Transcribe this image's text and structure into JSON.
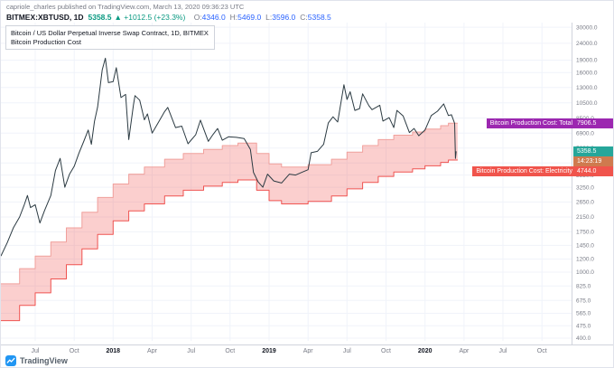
{
  "header": {
    "published_line": "capriole_charles published on TradingView.com, March 13, 2020 09:36:23 UTC",
    "symbol": "BITMEX:XBTUSD, 1D",
    "last_price": "5358.5",
    "change": "▲ +1012.5 (+23.3%)",
    "ohlc": [
      {
        "label": "O:",
        "value": "4346.0"
      },
      {
        "label": "H:",
        "value": "5469.0"
      },
      {
        "label": "L:",
        "value": "3596.0"
      },
      {
        "label": "C:",
        "value": "5358.5"
      }
    ]
  },
  "legend": {
    "line1": "Bitcoin / US Dollar Perpetual Inverse Swap Contract, 1D, BITMEX",
    "line2": "Bitcoin Production Cost"
  },
  "price_labels": {
    "total": {
      "text": "Bitcoin Production Cost: Total",
      "value": "7906.5",
      "color": "#9c27b0",
      "y_value": 7906.5
    },
    "last": {
      "value": "5358.5",
      "color": "#26a69a",
      "y_value": 5358.5
    },
    "countdown": {
      "value": "14:23:19",
      "color": "#cf7a4e"
    },
    "electricity": {
      "text": "Bitcoin Production Cost: Electricity",
      "value": "4744.0",
      "color": "#f0544c",
      "y_value": 4744.0
    }
  },
  "footer": {
    "brand": "TradingView"
  },
  "chart_data": {
    "type": "line",
    "title": "Bitcoin / US Dollar Perpetual Inverse Swap Contract, 1D, BITMEX",
    "subtitle": "Bitcoin Production Cost",
    "y_scale": "log",
    "grid": true,
    "x_range": [
      2017.28,
      2020.94
    ],
    "y_range": [
      385,
      32000
    ],
    "band_fill": "rgba(239,83,80,0.28)",
    "y_ticks": [
      30000,
      24000,
      19000,
      16000,
      13000,
      10500,
      8500,
      6900,
      5600,
      4550,
      3850,
      3250,
      2650,
      2150,
      1750,
      1450,
      1200,
      1000,
      825,
      675,
      565,
      475,
      400
    ],
    "x_ticks": [
      {
        "x": 2017.5,
        "label": "Jul"
      },
      {
        "x": 2017.75,
        "label": "Oct"
      },
      {
        "x": 2018.0,
        "label": "2018",
        "year": true
      },
      {
        "x": 2018.25,
        "label": "Apr"
      },
      {
        "x": 2018.5,
        "label": "Jul"
      },
      {
        "x": 2018.75,
        "label": "Oct"
      },
      {
        "x": 2019.0,
        "label": "2019",
        "year": true
      },
      {
        "x": 2019.25,
        "label": "Apr"
      },
      {
        "x": 2019.5,
        "label": "Jul"
      },
      {
        "x": 2019.75,
        "label": "Oct"
      },
      {
        "x": 2020.0,
        "label": "2020",
        "year": true
      },
      {
        "x": 2020.25,
        "label": "Apr"
      },
      {
        "x": 2020.5,
        "label": "Jul"
      },
      {
        "x": 2020.75,
        "label": "Oct"
      }
    ],
    "series": [
      {
        "name": "BITMEX:XBTUSD close",
        "color": "#2b3a42",
        "points": [
          [
            2017.28,
            1250
          ],
          [
            2017.32,
            1500
          ],
          [
            2017.36,
            1850
          ],
          [
            2017.4,
            2150
          ],
          [
            2017.43,
            2550
          ],
          [
            2017.45,
            2900
          ],
          [
            2017.47,
            2450
          ],
          [
            2017.5,
            2550
          ],
          [
            2017.53,
            1980
          ],
          [
            2017.56,
            2350
          ],
          [
            2017.6,
            2900
          ],
          [
            2017.63,
            4100
          ],
          [
            2017.66,
            4850
          ],
          [
            2017.69,
            3250
          ],
          [
            2017.72,
            3900
          ],
          [
            2017.75,
            4350
          ],
          [
            2017.78,
            5200
          ],
          [
            2017.81,
            6100
          ],
          [
            2017.84,
            7200
          ],
          [
            2017.86,
            5900
          ],
          [
            2017.88,
            8100
          ],
          [
            2017.9,
            9900
          ],
          [
            2017.93,
            16600
          ],
          [
            2017.95,
            19500
          ],
          [
            2017.97,
            13900
          ],
          [
            2018.0,
            14100
          ],
          [
            2018.02,
            17100
          ],
          [
            2018.05,
            11300
          ],
          [
            2018.08,
            11800
          ],
          [
            2018.1,
            6300
          ],
          [
            2018.13,
            10200
          ],
          [
            2018.14,
            11600
          ],
          [
            2018.17,
            10900
          ],
          [
            2018.2,
            8300
          ],
          [
            2018.22,
            9000
          ],
          [
            2018.25,
            6900
          ],
          [
            2018.29,
            8000
          ],
          [
            2018.33,
            9300
          ],
          [
            2018.35,
            9850
          ],
          [
            2018.4,
            7450
          ],
          [
            2018.44,
            7600
          ],
          [
            2018.48,
            5950
          ],
          [
            2018.53,
            6750
          ],
          [
            2018.56,
            8250
          ],
          [
            2018.61,
            6150
          ],
          [
            2018.64,
            6750
          ],
          [
            2018.67,
            7350
          ],
          [
            2018.7,
            6250
          ],
          [
            2018.74,
            6550
          ],
          [
            2018.79,
            6500
          ],
          [
            2018.84,
            6400
          ],
          [
            2018.88,
            5500
          ],
          [
            2018.9,
            4000
          ],
          [
            2018.93,
            3500
          ],
          [
            2018.96,
            3250
          ],
          [
            2018.99,
            3900
          ],
          [
            2019.03,
            3550
          ],
          [
            2019.08,
            3450
          ],
          [
            2019.13,
            3900
          ],
          [
            2019.17,
            3850
          ],
          [
            2019.21,
            4000
          ],
          [
            2019.25,
            4150
          ],
          [
            2019.27,
            5250
          ],
          [
            2019.31,
            5350
          ],
          [
            2019.35,
            5900
          ],
          [
            2019.38,
            7950
          ],
          [
            2019.41,
            8650
          ],
          [
            2019.44,
            8050
          ],
          [
            2019.48,
            13500
          ],
          [
            2019.5,
            11000
          ],
          [
            2019.52,
            12250
          ],
          [
            2019.55,
            9450
          ],
          [
            2019.58,
            9700
          ],
          [
            2019.6,
            11900
          ],
          [
            2019.64,
            10100
          ],
          [
            2019.66,
            9550
          ],
          [
            2019.71,
            10150
          ],
          [
            2019.73,
            8150
          ],
          [
            2019.77,
            8550
          ],
          [
            2019.8,
            7450
          ],
          [
            2019.82,
            9450
          ],
          [
            2019.86,
            8750
          ],
          [
            2019.9,
            6950
          ],
          [
            2019.93,
            7350
          ],
          [
            2019.96,
            6650
          ],
          [
            2020.0,
            7200
          ],
          [
            2020.04,
            8800
          ],
          [
            2020.08,
            9350
          ],
          [
            2020.12,
            10350
          ],
          [
            2020.15,
            8800
          ],
          [
            2020.17,
            8900
          ],
          [
            2020.19,
            7900
          ],
          [
            2020.195,
            4850
          ],
          [
            2020.2,
            5358.5
          ]
        ]
      },
      {
        "name": "Bitcoin Production Cost: Total",
        "color": "#f0a09c",
        "points": [
          [
            2017.28,
            850
          ],
          [
            2017.4,
            850
          ],
          [
            2017.4,
            1050
          ],
          [
            2017.5,
            1050
          ],
          [
            2017.5,
            1250
          ],
          [
            2017.6,
            1250
          ],
          [
            2017.6,
            1520
          ],
          [
            2017.7,
            1520
          ],
          [
            2017.7,
            1850
          ],
          [
            2017.8,
            1850
          ],
          [
            2017.8,
            2300
          ],
          [
            2017.9,
            2300
          ],
          [
            2017.9,
            2820
          ],
          [
            2018.0,
            2820
          ],
          [
            2018.0,
            3400
          ],
          [
            2018.1,
            3400
          ],
          [
            2018.1,
            3900
          ],
          [
            2018.2,
            3900
          ],
          [
            2018.2,
            4300
          ],
          [
            2018.33,
            4300
          ],
          [
            2018.33,
            4800
          ],
          [
            2018.45,
            4800
          ],
          [
            2018.45,
            5200
          ],
          [
            2018.58,
            5200
          ],
          [
            2018.58,
            5500
          ],
          [
            2018.7,
            5500
          ],
          [
            2018.7,
            5800
          ],
          [
            2018.8,
            5800
          ],
          [
            2018.8,
            6000
          ],
          [
            2018.92,
            6000
          ],
          [
            2018.92,
            5200
          ],
          [
            2019.0,
            5200
          ],
          [
            2019.0,
            4500
          ],
          [
            2019.08,
            4500
          ],
          [
            2019.08,
            4300
          ],
          [
            2019.25,
            4300
          ],
          [
            2019.25,
            4450
          ],
          [
            2019.4,
            4450
          ],
          [
            2019.4,
            4800
          ],
          [
            2019.5,
            4800
          ],
          [
            2019.5,
            5300
          ],
          [
            2019.6,
            5300
          ],
          [
            2019.6,
            5800
          ],
          [
            2019.7,
            5800
          ],
          [
            2019.7,
            6300
          ],
          [
            2019.8,
            6300
          ],
          [
            2019.8,
            6700
          ],
          [
            2019.92,
            6700
          ],
          [
            2019.92,
            7000
          ],
          [
            2020.0,
            7000
          ],
          [
            2020.0,
            7300
          ],
          [
            2020.1,
            7300
          ],
          [
            2020.1,
            7650
          ],
          [
            2020.15,
            7650
          ],
          [
            2020.15,
            7906.5
          ],
          [
            2020.21,
            7906.5
          ]
        ]
      },
      {
        "name": "Bitcoin Production Cost: Electricity",
        "color": "#ef5350",
        "points": [
          [
            2017.28,
            510
          ],
          [
            2017.4,
            510
          ],
          [
            2017.4,
            630
          ],
          [
            2017.5,
            630
          ],
          [
            2017.5,
            750
          ],
          [
            2017.6,
            750
          ],
          [
            2017.6,
            910
          ],
          [
            2017.7,
            910
          ],
          [
            2017.7,
            1110
          ],
          [
            2017.8,
            1110
          ],
          [
            2017.8,
            1380
          ],
          [
            2017.9,
            1380
          ],
          [
            2017.9,
            1690
          ],
          [
            2018.0,
            1690
          ],
          [
            2018.0,
            2040
          ],
          [
            2018.1,
            2040
          ],
          [
            2018.1,
            2340
          ],
          [
            2018.2,
            2340
          ],
          [
            2018.2,
            2580
          ],
          [
            2018.33,
            2580
          ],
          [
            2018.33,
            2880
          ],
          [
            2018.45,
            2880
          ],
          [
            2018.45,
            3120
          ],
          [
            2018.58,
            3120
          ],
          [
            2018.58,
            3300
          ],
          [
            2018.7,
            3300
          ],
          [
            2018.7,
            3480
          ],
          [
            2018.8,
            3480
          ],
          [
            2018.8,
            3600
          ],
          [
            2018.92,
            3600
          ],
          [
            2018.92,
            3120
          ],
          [
            2019.0,
            3120
          ],
          [
            2019.0,
            2700
          ],
          [
            2019.08,
            2700
          ],
          [
            2019.08,
            2580
          ],
          [
            2019.25,
            2580
          ],
          [
            2019.25,
            2670
          ],
          [
            2019.4,
            2670
          ],
          [
            2019.4,
            2880
          ],
          [
            2019.5,
            2880
          ],
          [
            2019.5,
            3180
          ],
          [
            2019.6,
            3180
          ],
          [
            2019.6,
            3480
          ],
          [
            2019.7,
            3480
          ],
          [
            2019.7,
            3780
          ],
          [
            2019.8,
            3780
          ],
          [
            2019.8,
            4020
          ],
          [
            2019.92,
            4020
          ],
          [
            2019.92,
            4200
          ],
          [
            2020.0,
            4200
          ],
          [
            2020.0,
            4380
          ],
          [
            2020.1,
            4380
          ],
          [
            2020.1,
            4590
          ],
          [
            2020.15,
            4590
          ],
          [
            2020.15,
            4744.0
          ],
          [
            2020.21,
            4744.0
          ]
        ]
      }
    ]
  }
}
